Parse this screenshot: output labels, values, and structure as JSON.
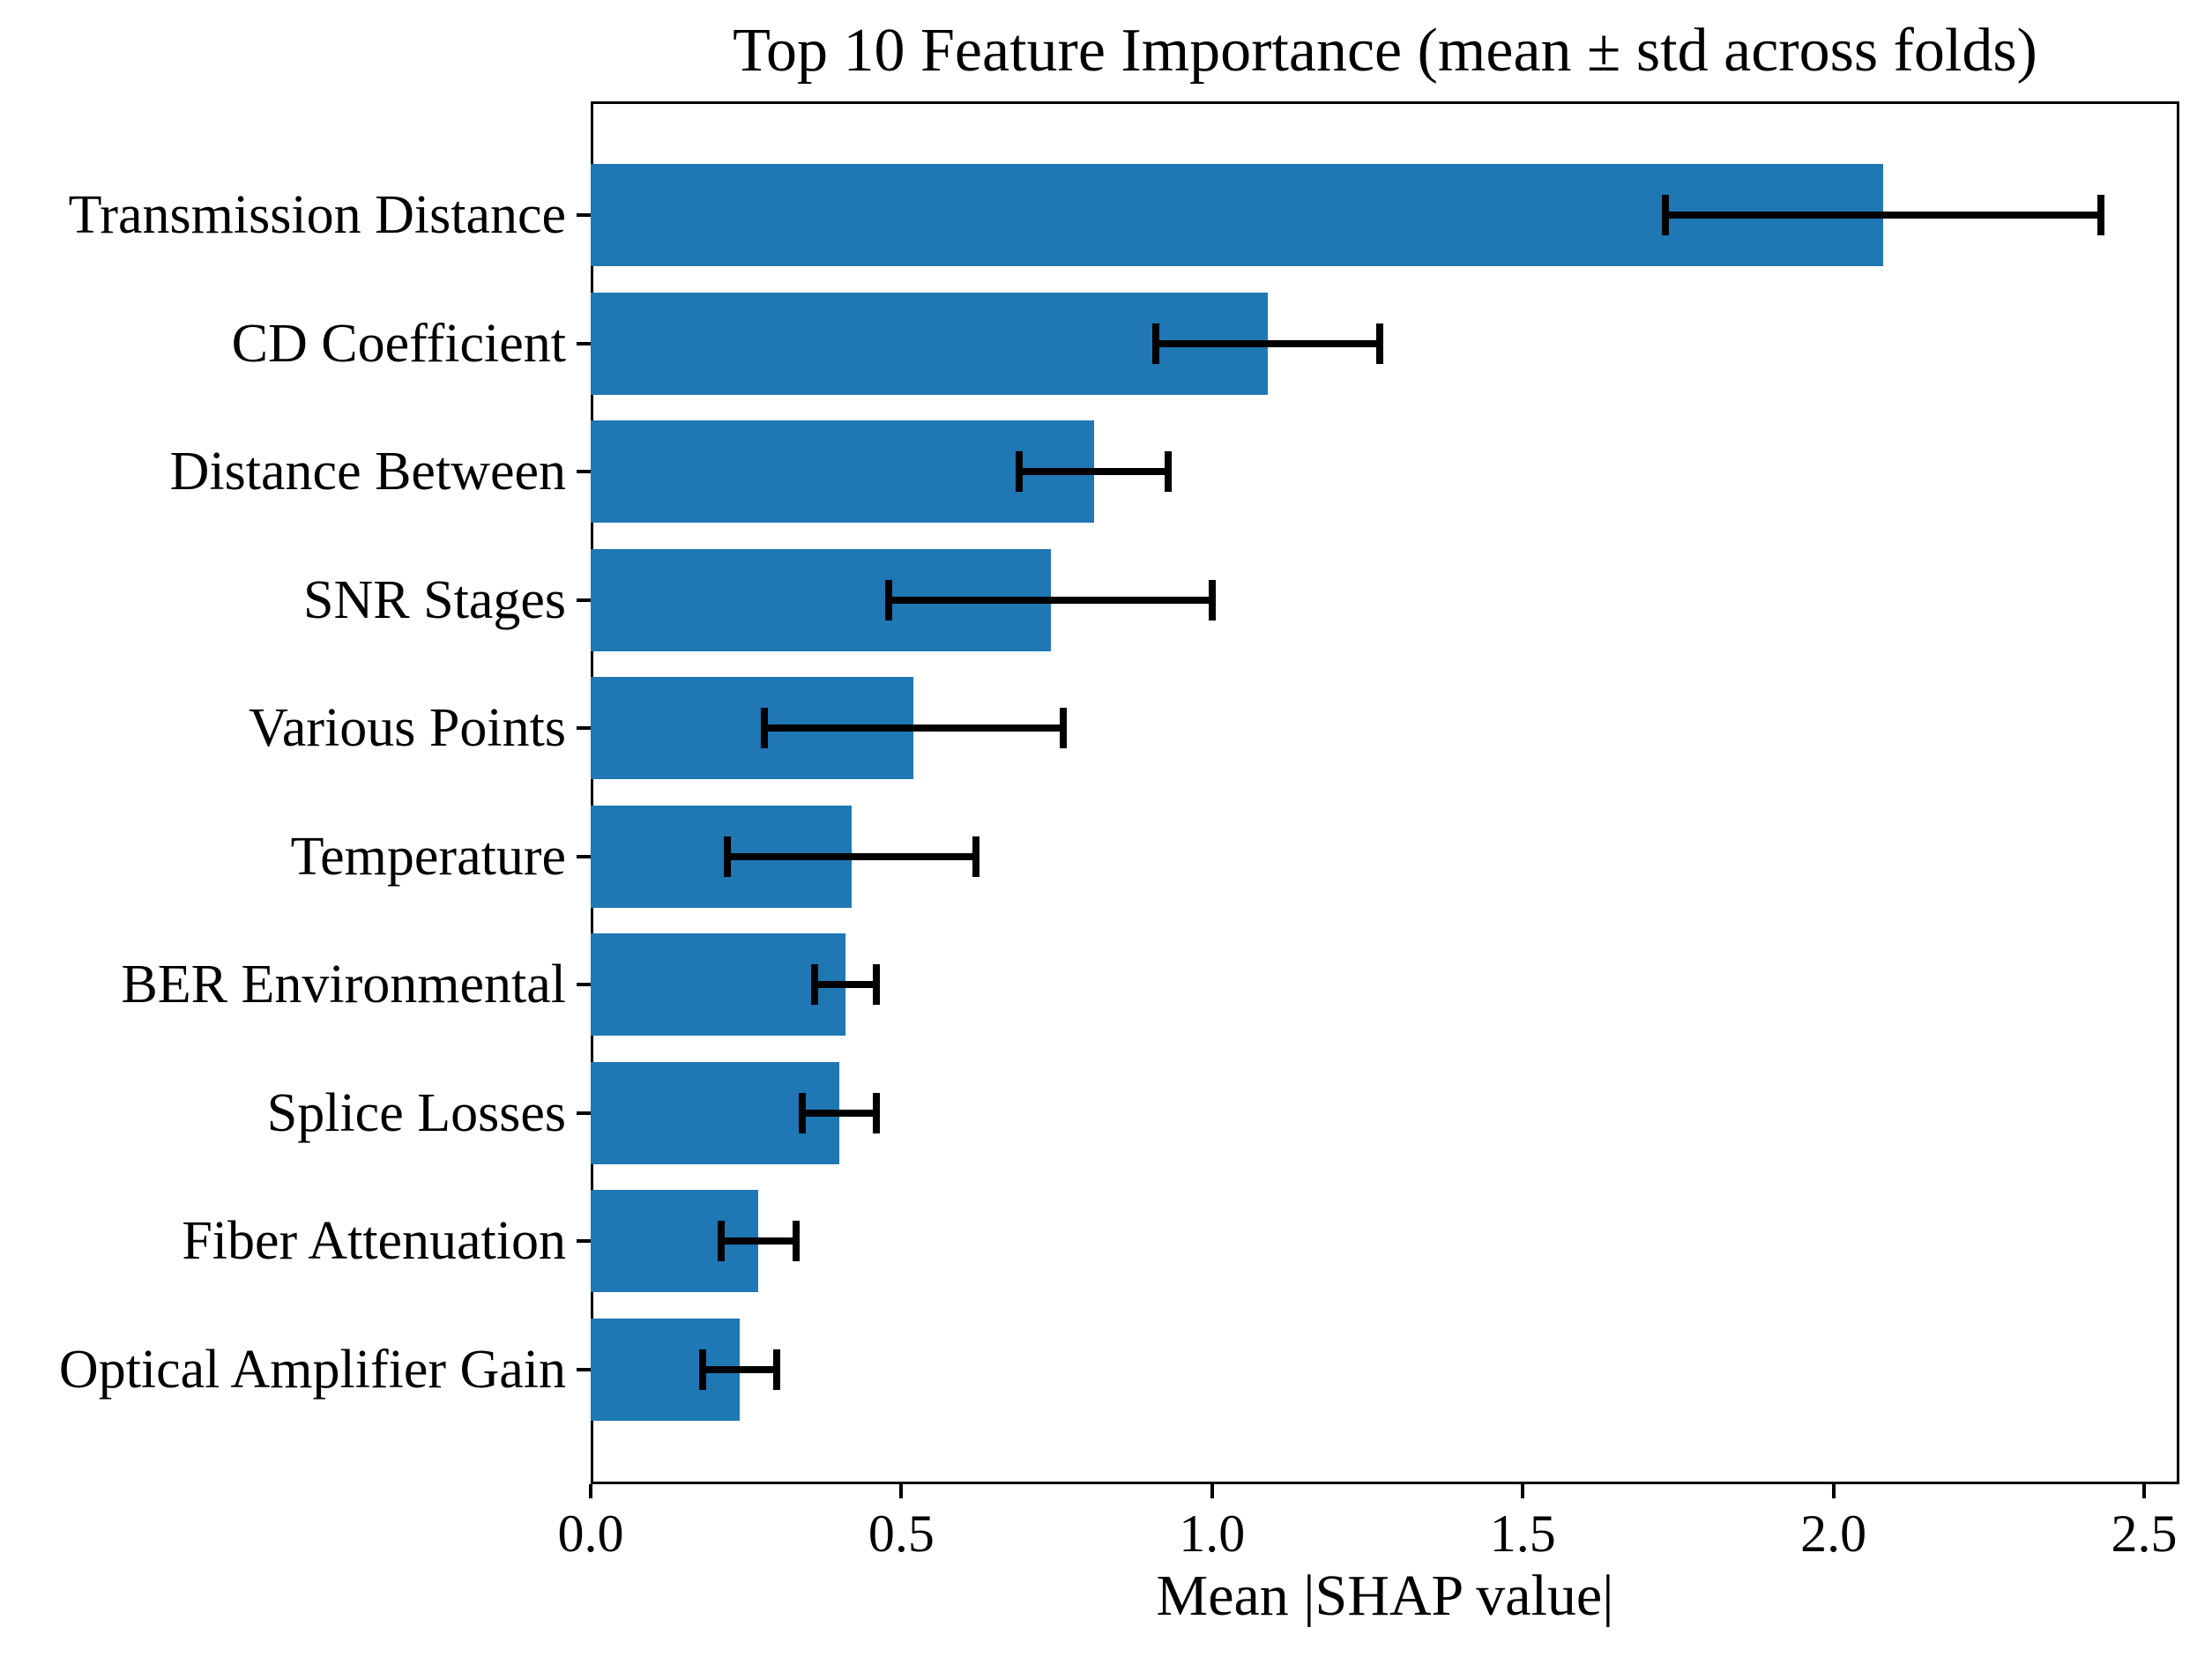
{
  "chart_data": {
    "type": "bar",
    "orientation": "horizontal",
    "title": "Top 10 Feature Importance (mean ± std across folds)",
    "xlabel": "Mean |SHAP value|",
    "categories": [
      "Transmission Distance",
      "CD Coefficient",
      "Distance Between",
      "SNR Stages",
      "Various Points",
      "Temperature",
      "BER Environmental",
      "Splice Losses",
      "Fiber Attenuation",
      "Optical Amplifier Gain"
    ],
    "series": [
      {
        "name": "mean |SHAP value|",
        "values": [
          2.08,
          1.09,
          0.81,
          0.74,
          0.52,
          0.42,
          0.41,
          0.4,
          0.27,
          0.24
        ]
      }
    ],
    "errors_std": [
      0.35,
      0.18,
      0.12,
      0.26,
      0.24,
      0.2,
      0.05,
      0.06,
      0.06,
      0.06
    ],
    "xlim": [
      0,
      2.56
    ],
    "xticks": [
      "0.0",
      "0.5",
      "1.0",
      "1.5",
      "2.0",
      "2.5"
    ],
    "grid": false,
    "bar_color": "#1f77b4",
    "error_color": "#000000",
    "axis_color": "#000000",
    "background_color": "#ffffff"
  }
}
